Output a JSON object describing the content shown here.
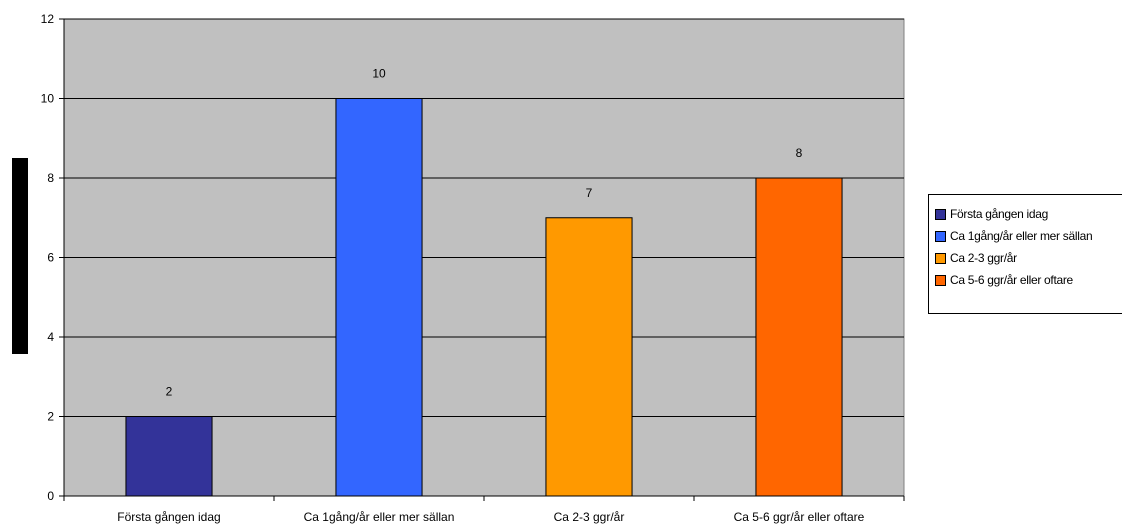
{
  "chart_data": {
    "type": "bar",
    "title": "",
    "xlabel": "",
    "ylabel": "",
    "categories": [
      "Första gången idag",
      "Ca 1gång/år eller mer sällan",
      "Ca 2-3 ggr/år",
      "Ca 5-6 ggr/år eller oftare"
    ],
    "values": [
      2,
      10,
      7,
      8
    ],
    "ylim": [
      0,
      12
    ],
    "yticks": [
      0,
      2,
      4,
      6,
      8,
      10,
      12
    ],
    "grid": true,
    "legend_position": "right",
    "legend": [
      "Första gången idag",
      "Ca 1gång/år eller mer sällan",
      "Ca 2-3 ggr/år",
      "Ca 5-6 ggr/år eller oftare"
    ],
    "colors": [
      "#333399",
      "#3366ff",
      "#ff9900",
      "#ff6600"
    ],
    "plot_background": "#c0c0c0"
  }
}
